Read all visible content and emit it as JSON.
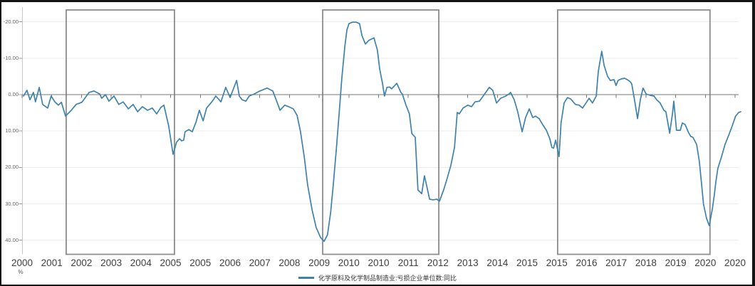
{
  "colors": {
    "series": "#3e82ac",
    "grid": "#ebebeb",
    "zero_line": "#777777",
    "axis": "#c8c8c8",
    "y_tick": "#999999",
    "box": "#8c8c8c",
    "frame": "#141414",
    "x_label": "#3f3f3f",
    "y_label": "#666666"
  },
  "chart_data": {
    "type": "line",
    "title": "",
    "unit_label": "%",
    "y_axis": {
      "ticks": [
        -20,
        -10,
        0,
        10,
        20,
        30,
        40
      ],
      "inverted": true,
      "tick_format": "0.00",
      "unit": "%"
    },
    "x_axis": {
      "labels": [
        "2000",
        "2001",
        "2002",
        "2003",
        "2004",
        "2005",
        "2005",
        "2006",
        "2007",
        "2008",
        "2009",
        "2010",
        "2010",
        "2011",
        "2012",
        "2013",
        "2014",
        "2015",
        "2015",
        "2016",
        "2017",
        "2018",
        "2019",
        "2020",
        "2020"
      ]
    },
    "highlight_regions": [
      [
        2001.25,
        2004.42
      ],
      [
        2008.76,
        2012.16
      ],
      [
        2015.64,
        2020.1
      ]
    ],
    "legend_position": "bottom-center",
    "grid": true,
    "series": [
      {
        "name": "化学原料及化学制品制造业:亏损企业单位数:同比",
        "color": "#3e82ac",
        "points": [
          [
            2000.0,
            0.4
          ],
          [
            2000.1,
            -1.2
          ],
          [
            2000.19,
            1.4
          ],
          [
            2000.29,
            -0.6
          ],
          [
            2000.35,
            2.0
          ],
          [
            2000.46,
            -2.0
          ],
          [
            2000.56,
            2.7
          ],
          [
            2000.71,
            3.7
          ],
          [
            2000.81,
            0.4
          ],
          [
            2000.92,
            2.0
          ],
          [
            2001.02,
            2.9
          ],
          [
            2001.11,
            2.1
          ],
          [
            2001.23,
            5.9
          ],
          [
            2001.4,
            4.3
          ],
          [
            2001.54,
            2.7
          ],
          [
            2001.71,
            2.1
          ],
          [
            2001.92,
            -0.6
          ],
          [
            2002.06,
            -1.0
          ],
          [
            2002.23,
            -0.2
          ],
          [
            2002.29,
            1.0
          ],
          [
            2002.4,
            0.0
          ],
          [
            2002.5,
            1.8
          ],
          [
            2002.65,
            0.4
          ],
          [
            2002.79,
            2.7
          ],
          [
            2002.92,
            2.0
          ],
          [
            2003.07,
            3.9
          ],
          [
            2003.21,
            2.7
          ],
          [
            2003.34,
            4.7
          ],
          [
            2003.48,
            3.3
          ],
          [
            2003.63,
            4.3
          ],
          [
            2003.77,
            3.7
          ],
          [
            2003.9,
            5.3
          ],
          [
            2004.02,
            3.5
          ],
          [
            2004.11,
            2.9
          ],
          [
            2004.25,
            8.6
          ],
          [
            2004.38,
            16.4
          ],
          [
            2004.48,
            13.1
          ],
          [
            2004.57,
            12.1
          ],
          [
            2004.63,
            12.7
          ],
          [
            2004.69,
            12.5
          ],
          [
            2004.73,
            10.2
          ],
          [
            2004.84,
            9.6
          ],
          [
            2004.94,
            10.2
          ],
          [
            2005.05,
            7.6
          ],
          [
            2005.15,
            4.3
          ],
          [
            2005.26,
            7.2
          ],
          [
            2005.36,
            3.7
          ],
          [
            2005.53,
            1.8
          ],
          [
            2005.63,
            0.4
          ],
          [
            2005.78,
            2.0
          ],
          [
            2005.92,
            -2.0
          ],
          [
            2006.05,
            0.8
          ],
          [
            2006.24,
            -3.9
          ],
          [
            2006.32,
            0.4
          ],
          [
            2006.4,
            1.4
          ],
          [
            2006.51,
            1.8
          ],
          [
            2006.61,
            0.4
          ],
          [
            2006.76,
            -0.2
          ],
          [
            2006.92,
            -1.0
          ],
          [
            2007.13,
            -1.8
          ],
          [
            2007.3,
            -1.0
          ],
          [
            2007.45,
            2.7
          ],
          [
            2007.51,
            4.3
          ],
          [
            2007.65,
            2.9
          ],
          [
            2007.76,
            3.3
          ],
          [
            2007.9,
            3.9
          ],
          [
            2008.01,
            5.7
          ],
          [
            2008.11,
            10.2
          ],
          [
            2008.22,
            17.0
          ],
          [
            2008.32,
            24.8
          ],
          [
            2008.45,
            31.7
          ],
          [
            2008.57,
            36.5
          ],
          [
            2008.7,
            39.3
          ],
          [
            2008.8,
            40.3
          ],
          [
            2008.9,
            38.5
          ],
          [
            2008.99,
            32.6
          ],
          [
            2009.07,
            24.8
          ],
          [
            2009.16,
            15.0
          ],
          [
            2009.24,
            5.3
          ],
          [
            2009.32,
            -4.5
          ],
          [
            2009.41,
            -13.3
          ],
          [
            2009.47,
            -17.8
          ],
          [
            2009.53,
            -19.5
          ],
          [
            2009.63,
            -19.9
          ],
          [
            2009.74,
            -19.9
          ],
          [
            2009.84,
            -19.5
          ],
          [
            2009.91,
            -16.2
          ],
          [
            2010.01,
            -13.9
          ],
          [
            2010.11,
            -14.9
          ],
          [
            2010.26,
            -15.6
          ],
          [
            2010.36,
            -12.3
          ],
          [
            2010.43,
            -7.0
          ],
          [
            2010.51,
            -3.1
          ],
          [
            2010.57,
            0.4
          ],
          [
            2010.64,
            -2.0
          ],
          [
            2010.72,
            -2.1
          ],
          [
            2010.78,
            -1.6
          ],
          [
            2010.93,
            -3.1
          ],
          [
            2011.05,
            -0.6
          ],
          [
            2011.09,
            -0.2
          ],
          [
            2011.2,
            2.9
          ],
          [
            2011.3,
            5.3
          ],
          [
            2011.37,
            10.7
          ],
          [
            2011.47,
            11.7
          ],
          [
            2011.55,
            26.2
          ],
          [
            2011.66,
            27.2
          ],
          [
            2011.74,
            22.3
          ],
          [
            2011.8,
            24.8
          ],
          [
            2011.89,
            28.7
          ],
          [
            2011.99,
            28.9
          ],
          [
            2012.1,
            28.7
          ],
          [
            2012.18,
            29.3
          ],
          [
            2012.3,
            26.2
          ],
          [
            2012.39,
            23.5
          ],
          [
            2012.51,
            19.5
          ],
          [
            2012.62,
            14.5
          ],
          [
            2012.7,
            4.9
          ],
          [
            2012.76,
            5.3
          ],
          [
            2012.87,
            3.7
          ],
          [
            2013.01,
            2.9
          ],
          [
            2013.12,
            3.3
          ],
          [
            2013.22,
            2.0
          ],
          [
            2013.35,
            1.8
          ],
          [
            2013.49,
            0.0
          ],
          [
            2013.64,
            -2.0
          ],
          [
            2013.74,
            -1.2
          ],
          [
            2013.85,
            2.3
          ],
          [
            2013.97,
            1.0
          ],
          [
            2014.12,
            0.4
          ],
          [
            2014.22,
            -0.2
          ],
          [
            2014.26,
            -0.6
          ],
          [
            2014.37,
            1.4
          ],
          [
            2014.47,
            4.7
          ],
          [
            2014.6,
            10.2
          ],
          [
            2014.7,
            6.3
          ],
          [
            2014.81,
            3.9
          ],
          [
            2014.91,
            6.3
          ],
          [
            2014.99,
            5.9
          ],
          [
            2015.1,
            6.6
          ],
          [
            2015.2,
            8.2
          ],
          [
            2015.31,
            9.8
          ],
          [
            2015.41,
            12.1
          ],
          [
            2015.47,
            14.5
          ],
          [
            2015.52,
            14.7
          ],
          [
            2015.58,
            12.5
          ],
          [
            2015.68,
            17.0
          ],
          [
            2015.74,
            7.8
          ],
          [
            2015.83,
            2.3
          ],
          [
            2015.93,
            0.8
          ],
          [
            2016.02,
            1.2
          ],
          [
            2016.16,
            2.7
          ],
          [
            2016.27,
            2.9
          ],
          [
            2016.37,
            3.7
          ],
          [
            2016.47,
            2.3
          ],
          [
            2016.56,
            1.0
          ],
          [
            2016.66,
            2.3
          ],
          [
            2016.77,
            0.4
          ],
          [
            2016.83,
            -6.4
          ],
          [
            2016.93,
            -11.9
          ],
          [
            2017.0,
            -8.0
          ],
          [
            2017.1,
            -5.1
          ],
          [
            2017.18,
            -3.9
          ],
          [
            2017.29,
            -4.1
          ],
          [
            2017.35,
            -2.5
          ],
          [
            2017.41,
            -3.9
          ],
          [
            2017.5,
            -4.3
          ],
          [
            2017.6,
            -4.5
          ],
          [
            2017.68,
            -4.1
          ],
          [
            2017.77,
            -3.5
          ],
          [
            2017.81,
            -2.9
          ],
          [
            2017.89,
            1.4
          ],
          [
            2017.98,
            6.6
          ],
          [
            2018.06,
            1.4
          ],
          [
            2018.14,
            -1.8
          ],
          [
            2018.23,
            -0.2
          ],
          [
            2018.35,
            0.2
          ],
          [
            2018.46,
            0.4
          ],
          [
            2018.54,
            1.4
          ],
          [
            2018.64,
            2.3
          ],
          [
            2018.75,
            4.3
          ],
          [
            2018.81,
            4.7
          ],
          [
            2018.92,
            10.6
          ],
          [
            2019.0,
            5.3
          ],
          [
            2019.04,
            1.8
          ],
          [
            2019.12,
            9.8
          ],
          [
            2019.23,
            9.8
          ],
          [
            2019.29,
            7.8
          ],
          [
            2019.37,
            8.2
          ],
          [
            2019.48,
            10.6
          ],
          [
            2019.54,
            11.5
          ],
          [
            2019.6,
            11.7
          ],
          [
            2019.71,
            13.7
          ],
          [
            2019.79,
            18.4
          ],
          [
            2019.85,
            24.2
          ],
          [
            2019.91,
            30.1
          ],
          [
            2020.0,
            34.0
          ],
          [
            2020.08,
            36.0
          ],
          [
            2020.17,
            31.3
          ],
          [
            2020.23,
            27.4
          ],
          [
            2020.27,
            24.2
          ],
          [
            2020.33,
            20.3
          ],
          [
            2020.44,
            17.0
          ],
          [
            2020.54,
            13.7
          ],
          [
            2020.65,
            11.1
          ],
          [
            2020.75,
            8.6
          ],
          [
            2020.85,
            5.9
          ],
          [
            2020.94,
            4.9
          ],
          [
            2021.0,
            4.7
          ]
        ]
      }
    ]
  }
}
